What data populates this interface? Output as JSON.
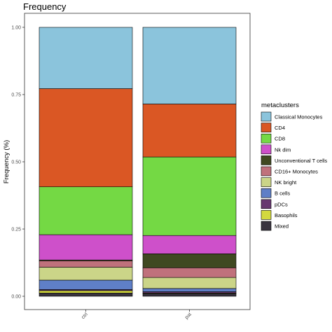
{
  "chart_data": {
    "type": "bar",
    "stacked": true,
    "title": "Frequency",
    "ylabel": "Frequency (%)",
    "xlabel": "",
    "ylim": [
      0,
      1
    ],
    "yticks": [
      "0.00",
      "0.25",
      "0.50",
      "0.75",
      "1.00"
    ],
    "ytick_values": [
      0,
      0.25,
      0.5,
      0.75,
      1.0
    ],
    "categories": [
      "ctrl",
      "pat"
    ],
    "legend_title": "metaclusters",
    "legend_position": "right",
    "grid": false,
    "series": [
      {
        "name": "Classical Monocytes",
        "color": "#8bc4dc",
        "values": [
          0.228,
          0.285
        ]
      },
      {
        "name": "CD4",
        "color": "#da5724",
        "values": [
          0.365,
          0.197
        ]
      },
      {
        "name": "CD8",
        "color": "#74d944",
        "values": [
          0.178,
          0.292
        ]
      },
      {
        "name": "Nk dim",
        "color": "#ce50ca",
        "values": [
          0.094,
          0.068
        ]
      },
      {
        "name": "Unconventional T cells",
        "color": "#3f4921",
        "values": [
          0.003,
          0.052
        ]
      },
      {
        "name": "CD16+ Monocytes",
        "color": "#c0717c",
        "values": [
          0.024,
          0.036
        ]
      },
      {
        "name": "NK bright",
        "color": "#cbd588",
        "values": [
          0.048,
          0.041
        ]
      },
      {
        "name": "B cells",
        "color": "#5f7fc7",
        "values": [
          0.035,
          0.012
        ]
      },
      {
        "name": "pDCs",
        "color": "#673770",
        "values": [
          0.004,
          0.005
        ]
      },
      {
        "name": "Basophils",
        "color": "#d3d93e",
        "values": [
          0.009,
          0.002
        ]
      },
      {
        "name": "Mixed",
        "color": "#38333e",
        "values": [
          0.012,
          0.01
        ]
      }
    ]
  }
}
